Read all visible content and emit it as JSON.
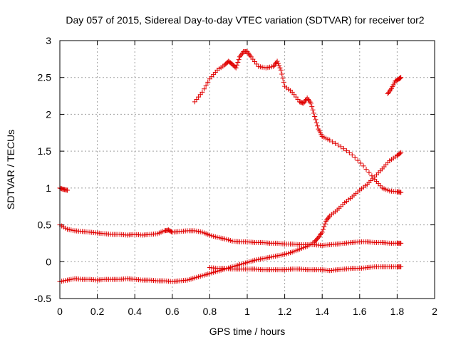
{
  "chart_data": {
    "type": "scatter",
    "title": "Day 057 of 2015, Sidereal Day-to-day VTEC variation (SDTVAR) for receiver tor2",
    "xlabel": "GPS time / hours",
    "ylabel": "SDTVAR / TECUs",
    "xlim": [
      0,
      2
    ],
    "ylim": [
      -0.5,
      3
    ],
    "x_ticks": [
      "0",
      "0.2",
      "0.4",
      "0.6",
      "0.8",
      "1",
      "1.2",
      "1.4",
      "1.6",
      "1.8",
      "2"
    ],
    "y_ticks": [
      "-0.5",
      "0",
      "0.5",
      "1",
      "1.5",
      "2",
      "2.5",
      "3"
    ],
    "grid": true,
    "marker": "plus",
    "color": "#e00000",
    "series": [
      {
        "x": [
          0.0,
          0.02,
          0.04
        ],
        "y": [
          1.0,
          0.98,
          0.97
        ]
      },
      {
        "x": [
          0.72,
          0.76,
          0.8,
          0.84,
          0.88,
          0.9,
          0.92,
          0.94,
          0.96,
          0.98,
          1.0,
          1.02,
          1.06,
          1.1,
          1.14,
          1.16,
          1.18,
          1.2,
          1.24,
          1.28,
          1.3,
          1.32,
          1.34,
          1.36,
          1.38,
          1.4,
          1.44,
          1.5,
          1.56,
          1.62,
          1.68,
          1.72,
          1.76,
          1.8,
          1.82
        ],
        "y": [
          2.17,
          2.3,
          2.48,
          2.6,
          2.67,
          2.72,
          2.68,
          2.63,
          2.78,
          2.85,
          2.85,
          2.78,
          2.65,
          2.63,
          2.65,
          2.72,
          2.6,
          2.38,
          2.3,
          2.17,
          2.15,
          2.22,
          2.15,
          1.97,
          1.8,
          1.7,
          1.65,
          1.56,
          1.45,
          1.3,
          1.12,
          1.0,
          0.96,
          0.95,
          0.94
        ]
      },
      {
        "x": [
          1.75,
          1.77,
          1.79,
          1.81,
          1.82
        ],
        "y": [
          2.28,
          2.35,
          2.45,
          2.48,
          2.5
        ]
      },
      {
        "x": [
          0.0,
          0.04,
          0.08,
          0.12,
          0.16,
          0.2,
          0.24,
          0.28,
          0.32,
          0.36,
          0.4,
          0.44,
          0.48,
          0.52,
          0.56,
          0.58,
          0.6,
          0.64,
          0.68,
          0.72,
          0.76,
          0.8,
          0.84,
          0.88,
          0.92,
          0.96,
          1.0,
          1.04,
          1.08,
          1.12,
          1.16,
          1.2,
          1.24,
          1.28,
          1.32,
          1.36,
          1.4,
          1.44,
          1.48,
          1.52,
          1.56,
          1.6,
          1.64,
          1.68,
          1.72,
          1.76,
          1.8,
          1.82
        ],
        "y": [
          0.5,
          0.44,
          0.42,
          0.41,
          0.4,
          0.39,
          0.38,
          0.37,
          0.37,
          0.36,
          0.37,
          0.36,
          0.37,
          0.38,
          0.42,
          0.43,
          0.4,
          0.41,
          0.42,
          0.42,
          0.4,
          0.36,
          0.33,
          0.31,
          0.28,
          0.27,
          0.27,
          0.26,
          0.26,
          0.25,
          0.25,
          0.24,
          0.24,
          0.23,
          0.23,
          0.23,
          0.22,
          0.23,
          0.24,
          0.25,
          0.26,
          0.27,
          0.27,
          0.26,
          0.26,
          0.25,
          0.25,
          0.25
        ]
      },
      {
        "x": [
          0.0,
          0.04,
          0.08,
          0.12,
          0.16,
          0.2,
          0.24,
          0.28,
          0.32,
          0.36,
          0.4,
          0.44,
          0.48,
          0.52,
          0.56,
          0.6,
          0.64,
          0.68,
          0.72,
          0.76,
          0.8,
          0.84,
          0.88,
          0.92,
          0.96,
          1.0,
          1.04,
          1.08,
          1.12,
          1.16,
          1.2,
          1.24,
          1.28,
          1.32,
          1.36,
          1.38,
          1.4,
          1.42,
          1.44,
          1.48,
          1.52,
          1.56,
          1.6,
          1.64,
          1.68,
          1.72,
          1.76,
          1.8,
          1.82
        ],
        "y": [
          -0.27,
          -0.25,
          -0.23,
          -0.24,
          -0.24,
          -0.25,
          -0.24,
          -0.24,
          -0.24,
          -0.23,
          -0.24,
          -0.25,
          -0.25,
          -0.26,
          -0.26,
          -0.27,
          -0.26,
          -0.25,
          -0.22,
          -0.19,
          -0.16,
          -0.13,
          -0.1,
          -0.07,
          -0.04,
          -0.01,
          0.02,
          0.04,
          0.06,
          0.08,
          0.1,
          0.13,
          0.17,
          0.21,
          0.27,
          0.33,
          0.4,
          0.55,
          0.62,
          0.7,
          0.8,
          0.88,
          0.97,
          1.05,
          1.15,
          1.26,
          1.37,
          1.44,
          1.48
        ]
      },
      {
        "x": [
          0.8,
          0.84,
          0.88,
          0.92,
          0.96,
          1.0,
          1.04,
          1.08,
          1.12,
          1.16,
          1.2,
          1.24,
          1.28,
          1.32,
          1.36,
          1.4,
          1.44,
          1.48,
          1.52,
          1.56,
          1.6,
          1.64,
          1.68,
          1.72,
          1.76,
          1.8,
          1.82
        ],
        "y": [
          -0.08,
          -0.09,
          -0.09,
          -0.1,
          -0.1,
          -0.1,
          -0.1,
          -0.11,
          -0.11,
          -0.11,
          -0.11,
          -0.1,
          -0.1,
          -0.11,
          -0.11,
          -0.11,
          -0.12,
          -0.11,
          -0.1,
          -0.09,
          -0.09,
          -0.08,
          -0.07,
          -0.07,
          -0.07,
          -0.07,
          -0.07
        ]
      }
    ]
  }
}
